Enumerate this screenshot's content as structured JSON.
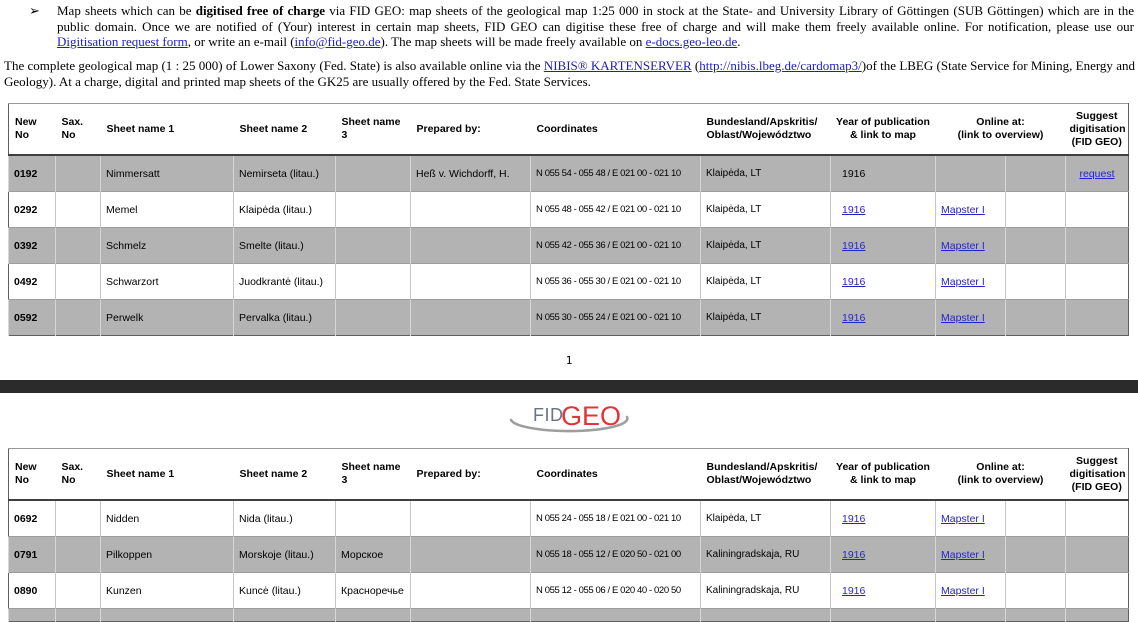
{
  "page": {
    "number": "1"
  },
  "intro": {
    "bullet": "➢",
    "p1": {
      "s1": "Map sheets which can be ",
      "bold": "digitised free of charge",
      "s2": " via FID GEO: map sheets of the geological map 1:25 000 in stock at the State- and University Library of Göttingen (SUB Göttingen) which are in the public domain. Once we are notified of (Your) interest in certain map sheets, FID GEO can digitise these free of charge and will make them freely available online. For notification, please use our ",
      "link_form": "Digitisation request form",
      "s3": ", or write an e-mail (",
      "link_email": "info@fid-geo.de",
      "s4": "). The map sheets will be made freely available on ",
      "link_edocs": "e-docs.geo-leo.de",
      "s5": "."
    },
    "p2": {
      "s1": "The complete geological map (1 : 25 000) of Lower Saxony (Fed. State) is also available online via the ",
      "link_nibis": "NIBIS® KARTENSERVER",
      "s2": " (",
      "link_url": "http://nibis.lbeg.de/cardomap3/",
      "s3": ")of the LBEG (State Service for Mining, Energy and Geology). At a charge, digital and printed map sheets of the GK25 are usually offered by the Fed. State Services."
    }
  },
  "logo": {
    "fid": "FID",
    "geo": "GEO"
  },
  "colors": {
    "link_blue": "#2424cc",
    "shaded_row": "#b3b3b3",
    "divider_bar": "#2b2b2b",
    "logo_red": "#e23438",
    "logo_gray": "#6b7480"
  },
  "table_headers": [
    {
      "key": "new_no",
      "label": "New No"
    },
    {
      "key": "sax_no",
      "label": "Sax. No"
    },
    {
      "key": "name1",
      "label": "Sheet name 1"
    },
    {
      "key": "name2",
      "label": "Sheet name 2"
    },
    {
      "key": "name3",
      "label": "Sheet name 3"
    },
    {
      "key": "prepared_by",
      "label": "Prepared by:"
    },
    {
      "key": "coordinates",
      "label": "Coordinates"
    },
    {
      "key": "region",
      "label": "Bundesland/Apskritis/\nOblast/Województwo"
    },
    {
      "key": "year",
      "label": "Year of publication\n& link to map"
    },
    {
      "key": "online",
      "label": "Online at:\n(link to overview)"
    },
    {
      "key": "suggest",
      "label": "Suggest\ndigitisation\n(FID GEO)"
    }
  ],
  "tables": [
    {
      "first_row_shaded": true,
      "partial_row": false,
      "rows": [
        {
          "new_no": "0192",
          "sax_no": "",
          "name1": "Nimmersatt",
          "name2": "Nemirseta (litau.)",
          "name3": "",
          "prepared_by": "Heß v. Wichdorff, H.",
          "coordinates": "N 055 54 - 055 48 / E 021 00 - 021 10",
          "region": "Klaipėda, LT",
          "year": "1916",
          "year_is_link": false,
          "online": "",
          "suggest": "request"
        },
        {
          "new_no": "0292",
          "sax_no": "",
          "name1": "Memel",
          "name2": "Klaipėda (litau.)",
          "name3": "",
          "prepared_by": "",
          "coordinates": "N 055 48 - 055 42 / E 021 00 - 021 10",
          "region": "Klaipėda, LT",
          "year": "1916",
          "year_is_link": true,
          "online": "Mapster I",
          "suggest": ""
        },
        {
          "new_no": "0392",
          "sax_no": "",
          "name1": "Schmelz",
          "name2": "Smelte (litau.)",
          "name3": "",
          "prepared_by": "",
          "coordinates": "N 055 42 - 055 36 / E 021 00 - 021 10",
          "region": "Klaipėda, LT",
          "year": "1916",
          "year_is_link": true,
          "online": "Mapster I",
          "suggest": ""
        },
        {
          "new_no": "0492",
          "sax_no": "",
          "name1": "Schwarzort",
          "name2": "Juodkrantė (litau.)",
          "name3": "",
          "prepared_by": "",
          "coordinates": "N 055 36 - 055 30 / E 021 00 - 021 10",
          "region": "Klaipėda, LT",
          "year": "1916",
          "year_is_link": true,
          "online": "Mapster I",
          "suggest": ""
        },
        {
          "new_no": "0592",
          "sax_no": "",
          "name1": "Perwelk",
          "name2": "Pervalka (litau.)",
          "name3": "",
          "prepared_by": "",
          "coordinates": "N 055 30 - 055 24 / E 021 00 - 021 10",
          "region": "Klaipėda, LT",
          "year": "1916",
          "year_is_link": true,
          "online": "Mapster I",
          "suggest": ""
        }
      ]
    },
    {
      "first_row_shaded": false,
      "partial_row": true,
      "rows": [
        {
          "new_no": "0692",
          "sax_no": "",
          "name1": "Nidden",
          "name2": "Nida (litau.)",
          "name3": "",
          "prepared_by": "",
          "coordinates": "N 055 24 - 055 18 / E 021 00 - 021 10",
          "region": "Klaipėda, LT",
          "year": "1916",
          "year_is_link": true,
          "online": "Mapster I",
          "suggest": ""
        },
        {
          "new_no": "0791",
          "sax_no": "",
          "name1": "Pilkoppen",
          "name2": "Morskoje (litau.)",
          "name3": "Морское",
          "prepared_by": "",
          "coordinates": "N 055 18 - 055 12 / E 020 50 - 021 00",
          "region": "Kaliningradskaja, RU",
          "year": "1916",
          "year_is_link": true,
          "online": "Mapster I",
          "suggest": ""
        },
        {
          "new_no": "0890",
          "sax_no": "",
          "name1": "Kunzen",
          "name2": "Kuncė (litau.)",
          "name3": "Красноречье",
          "prepared_by": "",
          "coordinates": "N 055 12 - 055 06 / E 020 40 - 020 50",
          "region": "Kaliningradskaja, RU",
          "year": "1916",
          "year_is_link": true,
          "online": "Mapster I",
          "suggest": ""
        }
      ]
    }
  ]
}
